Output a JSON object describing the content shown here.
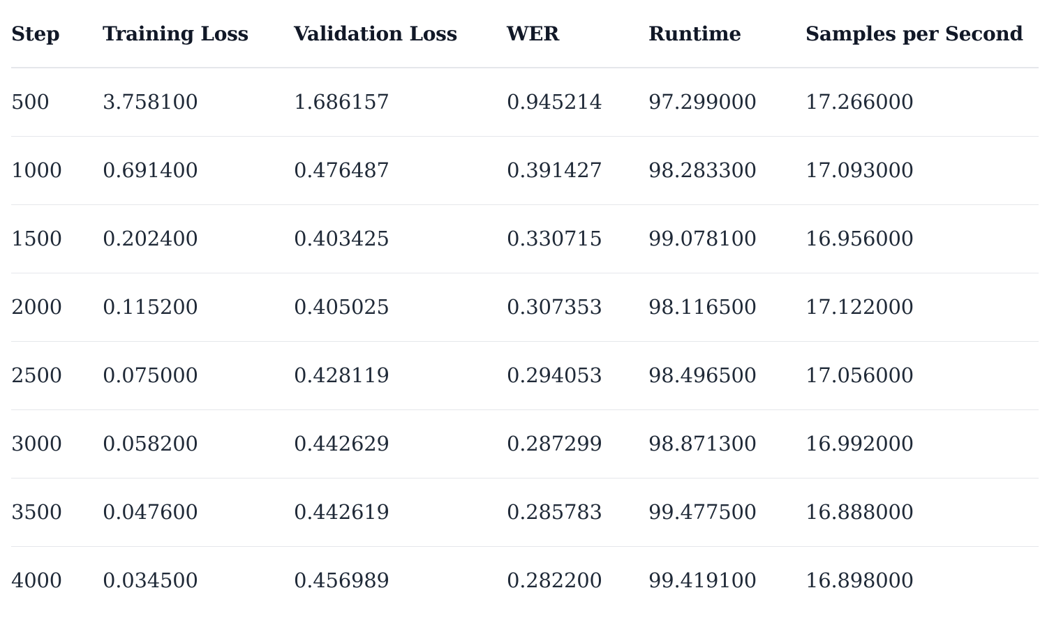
{
  "table": {
    "headers": [
      "Step",
      "Training Loss",
      "Validation Loss",
      "WER",
      "Runtime",
      "Samples per Second"
    ],
    "rows": [
      [
        "500",
        "3.758100",
        "1.686157",
        "0.945214",
        "97.299000",
        "17.266000"
      ],
      [
        "1000",
        "0.691400",
        "0.476487",
        "0.391427",
        "98.283300",
        "17.093000"
      ],
      [
        "1500",
        "0.202400",
        "0.403425",
        "0.330715",
        "99.078100",
        "16.956000"
      ],
      [
        "2000",
        "0.115200",
        "0.405025",
        "0.307353",
        "98.116500",
        "17.122000"
      ],
      [
        "2500",
        "0.075000",
        "0.428119",
        "0.294053",
        "98.496500",
        "17.056000"
      ],
      [
        "3000",
        "0.058200",
        "0.442629",
        "0.287299",
        "98.871300",
        "16.992000"
      ],
      [
        "3500",
        "0.047600",
        "0.442619",
        "0.285783",
        "99.477500",
        "16.888000"
      ],
      [
        "4000",
        "0.034500",
        "0.456989",
        "0.282200",
        "99.419100",
        "16.898000"
      ]
    ]
  },
  "colors": {
    "text": "#1f2937",
    "header_text": "#111827",
    "rule": "#e5e7eb"
  }
}
